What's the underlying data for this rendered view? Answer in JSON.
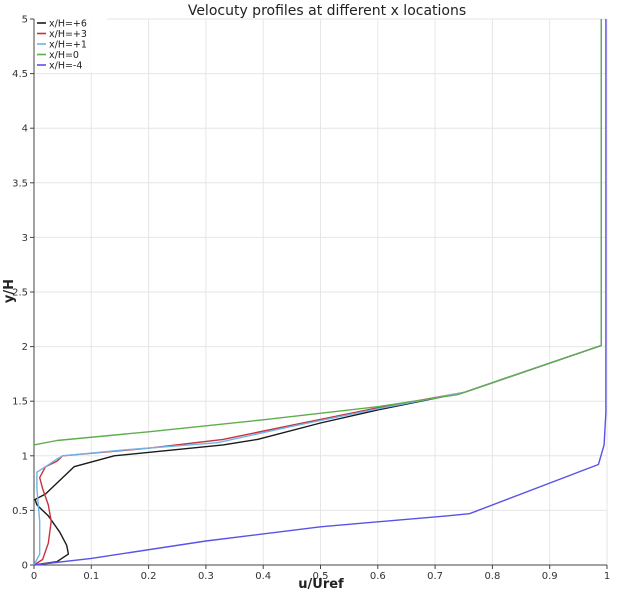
{
  "chart_data": {
    "type": "line",
    "title": "Velocuty profiles at different x locations",
    "xlabel": "u/Uref",
    "ylabel": "y/H",
    "xlim": [
      0,
      1
    ],
    "ylim": [
      0,
      5
    ],
    "x_ticks": [
      "0",
      "0.1",
      "0.2",
      "0.3",
      "0.4",
      "0.5",
      "0.6",
      "0.7",
      "0.8",
      "0.9",
      "1"
    ],
    "y_ticks": [
      "0",
      "0.5",
      "1",
      "1.5",
      "2",
      "2.5",
      "3",
      "3.5",
      "4",
      "4.5",
      "5"
    ],
    "grid": true,
    "legend_position": "top-left",
    "series": [
      {
        "name": "x/H=+6",
        "color": "#1a1a1a",
        "points": [
          [
            0,
            0
          ],
          [
            0.04,
            0.03
          ],
          [
            0.06,
            0.1
          ],
          [
            0.057,
            0.18
          ],
          [
            0.045,
            0.3
          ],
          [
            0.025,
            0.45
          ],
          [
            0.005,
            0.55
          ],
          [
            0.002,
            0.6
          ],
          [
            0.02,
            0.65
          ],
          [
            0.04,
            0.75
          ],
          [
            0.07,
            0.9
          ],
          [
            0.14,
            1.0
          ],
          [
            0.33,
            1.1
          ],
          [
            0.39,
            1.15
          ],
          [
            0.5,
            1.3
          ],
          [
            0.6,
            1.42
          ],
          [
            0.75,
            1.58
          ],
          [
            0.99,
            2.01
          ],
          [
            0.99,
            5.0
          ]
        ]
      },
      {
        "name": "x/H=+3",
        "color": "#c8323c",
        "points": [
          [
            0,
            0
          ],
          [
            0.015,
            0.05
          ],
          [
            0.025,
            0.2
          ],
          [
            0.03,
            0.4
          ],
          [
            0.025,
            0.55
          ],
          [
            0.015,
            0.7
          ],
          [
            0.01,
            0.8
          ],
          [
            0.02,
            0.9
          ],
          [
            0.04,
            0.95
          ],
          [
            0.05,
            1.0
          ],
          [
            0.2,
            1.07
          ],
          [
            0.33,
            1.15
          ],
          [
            0.45,
            1.28
          ],
          [
            0.6,
            1.44
          ],
          [
            0.75,
            1.58
          ],
          [
            0.99,
            2.01
          ],
          [
            0.99,
            5.0
          ]
        ]
      },
      {
        "name": "x/H=+1",
        "color": "#6fb4e8",
        "points": [
          [
            0,
            0
          ],
          [
            0.01,
            0.1
          ],
          [
            0.01,
            0.4
          ],
          [
            0.005,
            0.7
          ],
          [
            0.005,
            0.85
          ],
          [
            0.02,
            0.9
          ],
          [
            0.04,
            0.97
          ],
          [
            0.05,
            1.0
          ],
          [
            0.15,
            1.05
          ],
          [
            0.32,
            1.12
          ],
          [
            0.45,
            1.27
          ],
          [
            0.6,
            1.43
          ],
          [
            0.75,
            1.58
          ],
          [
            0.99,
            2.01
          ],
          [
            0.99,
            5.0
          ]
        ]
      },
      {
        "name": "x/H=0",
        "color": "#5fae4e",
        "points": [
          [
            0,
            1.1
          ],
          [
            0.04,
            1.14
          ],
          [
            0.2,
            1.22
          ],
          [
            0.4,
            1.33
          ],
          [
            0.6,
            1.45
          ],
          [
            0.74,
            1.56
          ],
          [
            0.99,
            2.01
          ],
          [
            0.99,
            5.0
          ]
        ]
      },
      {
        "name": "x/H=-4",
        "color": "#5a52e8",
        "points": [
          [
            0,
            0
          ],
          [
            0.1,
            0.06
          ],
          [
            0.3,
            0.22
          ],
          [
            0.5,
            0.35
          ],
          [
            0.72,
            0.45
          ],
          [
            0.76,
            0.47
          ],
          [
            0.985,
            0.92
          ],
          [
            0.995,
            1.1
          ],
          [
            0.998,
            1.4
          ],
          [
            0.998,
            5.0
          ]
        ]
      }
    ]
  }
}
